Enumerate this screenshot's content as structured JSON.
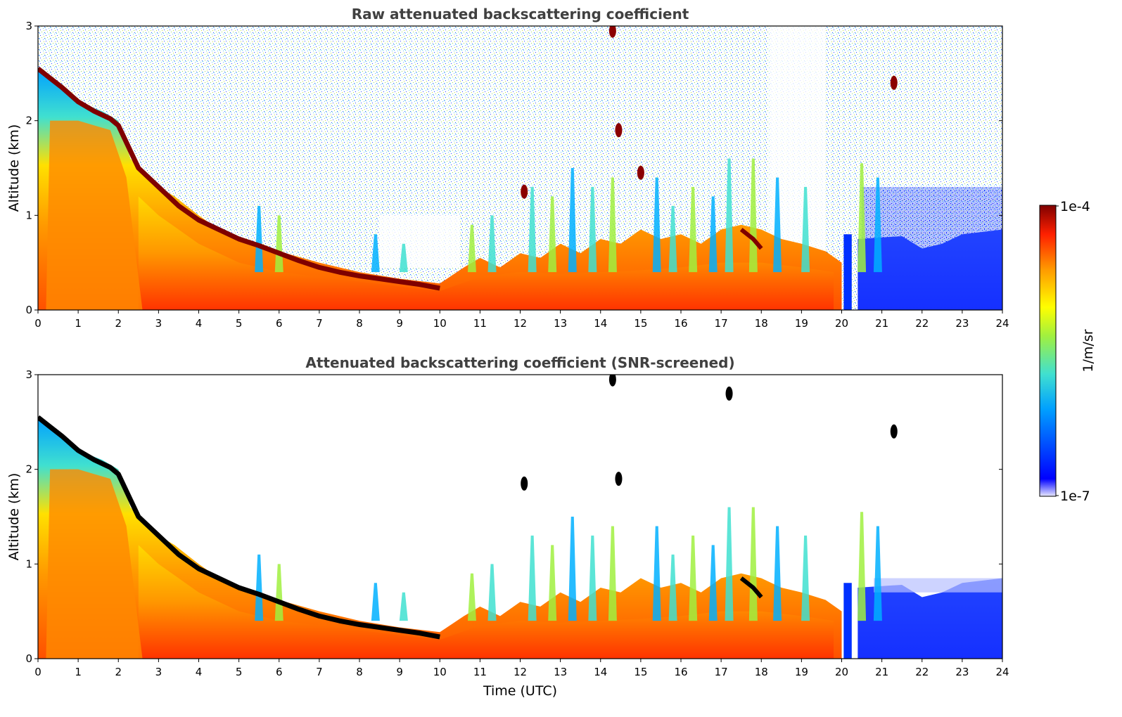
{
  "chart_data": [
    {
      "type": "heatmap",
      "title": "Raw attenuated backscattering coefficient",
      "xlabel": "",
      "ylabel": "Altitude (km)",
      "xlim": [
        0,
        24
      ],
      "ylim": [
        0,
        3
      ],
      "xticks": [
        "0",
        "1",
        "2",
        "3",
        "4",
        "5",
        "6",
        "7",
        "8",
        "9",
        "10",
        "11",
        "12",
        "13",
        "14",
        "15",
        "16",
        "17",
        "18",
        "19",
        "20",
        "21",
        "22",
        "23",
        "24"
      ],
      "yticks": [
        "0",
        "1",
        "2",
        "3"
      ],
      "screened": false,
      "features": {
        "boundary_layer_top_km": [
          [
            0.0,
            2.55
          ],
          [
            0.5,
            2.35
          ],
          [
            1.0,
            2.15
          ],
          [
            1.5,
            2.05
          ],
          [
            2.0,
            1.95
          ],
          [
            2.5,
            1.45
          ],
          [
            3.0,
            1.3
          ],
          [
            3.5,
            1.15
          ],
          [
            4.0,
            0.95
          ],
          [
            4.5,
            0.8
          ],
          [
            5.0,
            0.7
          ],
          [
            6.0,
            0.58
          ],
          [
            7.0,
            0.45
          ],
          [
            8.0,
            0.35
          ],
          [
            9.0,
            0.3
          ],
          [
            10.0,
            0.22
          ],
          [
            11.0,
            0.3
          ],
          [
            12.0,
            0.35
          ],
          [
            13.0,
            0.38
          ],
          [
            14.0,
            0.4
          ],
          [
            15.0,
            0.45
          ],
          [
            16.0,
            0.55
          ],
          [
            17.0,
            0.62
          ],
          [
            17.5,
            0.7
          ],
          [
            18.0,
            0.6
          ],
          [
            19.0,
            0.55
          ],
          [
            19.8,
            0.5
          ]
        ],
        "isolated_clouds": [
          {
            "time": 14.3,
            "altitude_km": 2.95
          },
          {
            "time": 14.45,
            "altitude_km": 1.9
          },
          {
            "time": 21.3,
            "altitude_km": 2.4
          },
          {
            "time": 12.1,
            "altitude_km": 1.25
          },
          {
            "time": 15.0,
            "altitude_km": 1.45
          }
        ]
      }
    },
    {
      "type": "heatmap",
      "title": "Attenuated backscattering coefficient (SNR-screened)",
      "xlabel": "Time (UTC)",
      "ylabel": "Altitude (km)",
      "xlim": [
        0,
        24
      ],
      "ylim": [
        0,
        3
      ],
      "xticks": [
        "0",
        "1",
        "2",
        "3",
        "4",
        "5",
        "6",
        "7",
        "8",
        "9",
        "10",
        "11",
        "12",
        "13",
        "14",
        "15",
        "16",
        "17",
        "18",
        "19",
        "20",
        "21",
        "22",
        "23",
        "24"
      ],
      "yticks": [
        "0",
        "1",
        "2",
        "3"
      ],
      "screened": true,
      "features": {
        "isolated_clouds": [
          {
            "time": 14.3,
            "altitude_km": 2.95
          },
          {
            "time": 14.45,
            "altitude_km": 1.9
          },
          {
            "time": 21.3,
            "altitude_km": 2.4
          },
          {
            "time": 17.2,
            "altitude_km": 2.8
          },
          {
            "time": 12.1,
            "altitude_km": 1.85
          }
        ]
      }
    }
  ],
  "colorbar": {
    "label": "1/m/sr",
    "min_label": "1e-7",
    "max_label": "1e-4",
    "scale": "log",
    "colormap": "jet",
    "colors": [
      "#e8e8ff",
      "#0000ff",
      "#00a0ff",
      "#40e0d0",
      "#a0f040",
      "#ffff00",
      "#ff9900",
      "#ff2000",
      "#7f0000"
    ]
  }
}
